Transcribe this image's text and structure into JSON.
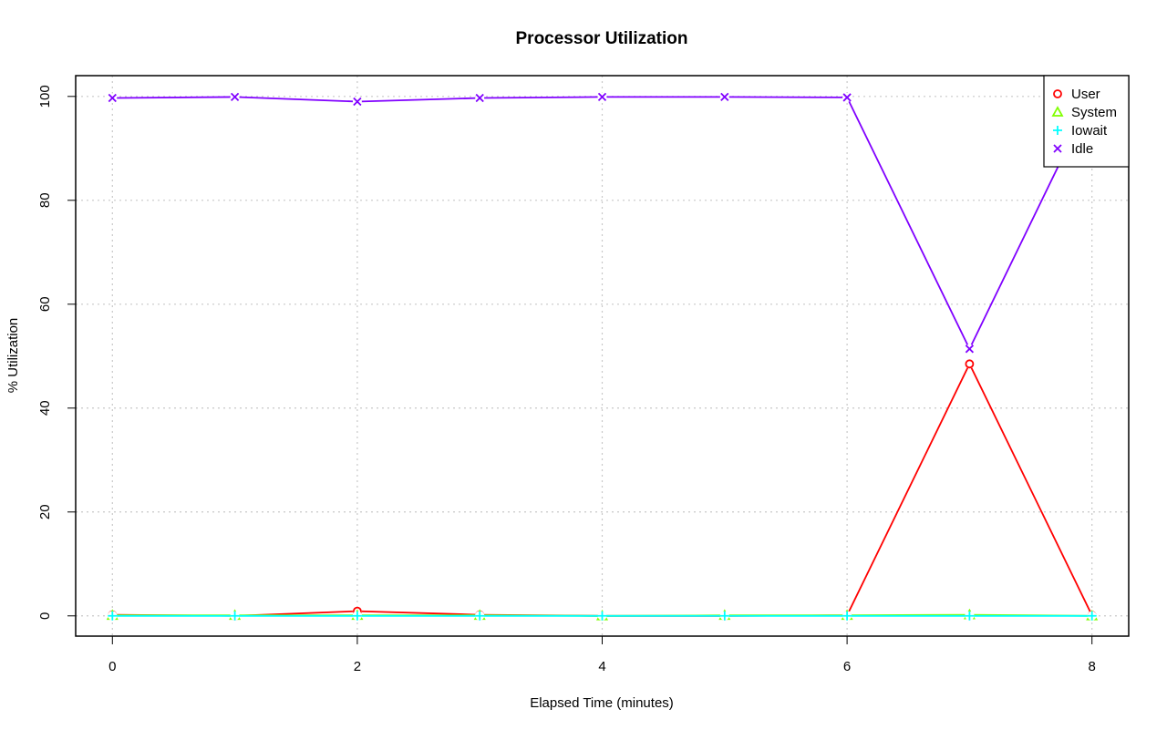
{
  "chart_data": {
    "type": "line",
    "title": "Processor Utilization",
    "xlabel": "Elapsed Time (minutes)",
    "ylabel": "% Utilization",
    "x": [
      0,
      1,
      2,
      3,
      4,
      5,
      6,
      7,
      8
    ],
    "xlim": [
      -0.3,
      8.3
    ],
    "ylim": [
      -3.9,
      104.0
    ],
    "xticks": [
      0,
      2,
      4,
      6,
      8
    ],
    "yticks": [
      0,
      20,
      40,
      60,
      80,
      100
    ],
    "grid": true,
    "legend_position": "top-right",
    "series": [
      {
        "name": "User",
        "color": "#ff0000",
        "marker": "circle",
        "values": [
          0.2,
          0.0,
          0.9,
          0.2,
          0.0,
          0.0,
          0.1,
          48.5,
          0.1
        ]
      },
      {
        "name": "System",
        "color": "#80ff00",
        "marker": "triangle",
        "values": [
          0.1,
          0.1,
          0.1,
          0.1,
          0.0,
          0.1,
          0.1,
          0.2,
          0.0
        ]
      },
      {
        "name": "Iowait",
        "color": "#00ffff",
        "marker": "plus",
        "values": [
          0.0,
          0.0,
          0.0,
          0.0,
          0.0,
          0.0,
          0.0,
          0.0,
          0.0
        ]
      },
      {
        "name": "Idle",
        "color": "#8000ff",
        "marker": "cross",
        "values": [
          99.7,
          99.9,
          99.0,
          99.7,
          99.9,
          99.9,
          99.8,
          51.4,
          99.9
        ]
      }
    ]
  }
}
